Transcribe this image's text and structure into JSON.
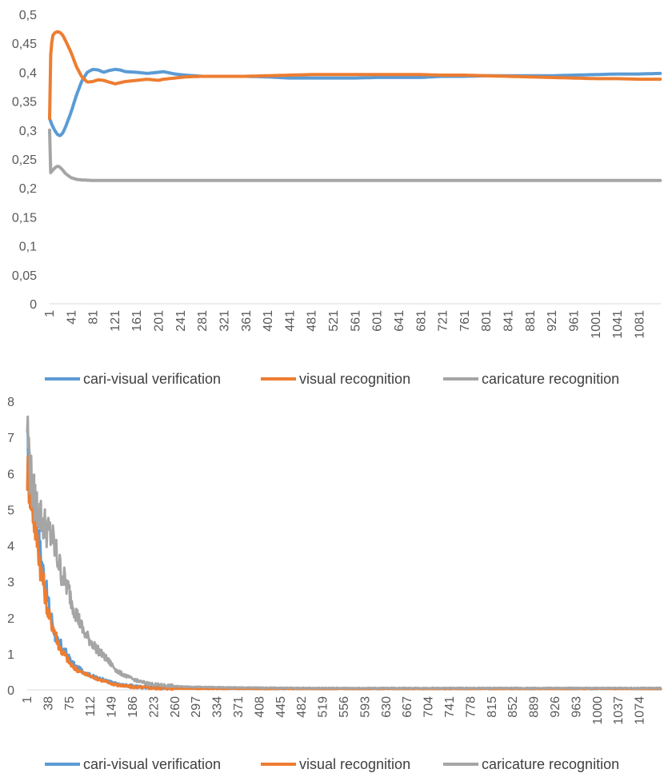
{
  "chart_data": [
    {
      "type": "line",
      "title": "",
      "xlabel": "",
      "ylabel": "",
      "ylim": [
        0,
        0.5
      ],
      "xlim": [
        1,
        1120
      ],
      "y_ticks": [
        "0",
        "0,05",
        "0,1",
        "0,15",
        "0,2",
        "0,25",
        "0,3",
        "0,35",
        "0,4",
        "0,45",
        "0,5"
      ],
      "x_ticks": [
        "1",
        "41",
        "81",
        "121",
        "161",
        "201",
        "241",
        "281",
        "321",
        "361",
        "401",
        "441",
        "481",
        "521",
        "561",
        "601",
        "641",
        "681",
        "721",
        "761",
        "801",
        "841",
        "881",
        "921",
        "961",
        "1001",
        "1041",
        "1081"
      ],
      "grid": false,
      "legend_position": "bottom",
      "series": [
        {
          "name": "cari-visual verification",
          "color": "#5b9bd5",
          "x": [
            1,
            5,
            10,
            15,
            20,
            25,
            30,
            40,
            50,
            60,
            70,
            80,
            90,
            100,
            110,
            121,
            130,
            140,
            160,
            180,
            200,
            210,
            230,
            250,
            280,
            320,
            360,
            400,
            440,
            480,
            520,
            560,
            600,
            640,
            680,
            720,
            760,
            800,
            840,
            880,
            920,
            960,
            1000,
            1040,
            1080,
            1120
          ],
          "y": [
            0.32,
            0.31,
            0.3,
            0.293,
            0.29,
            0.295,
            0.305,
            0.33,
            0.36,
            0.385,
            0.4,
            0.405,
            0.404,
            0.4,
            0.403,
            0.405,
            0.404,
            0.401,
            0.4,
            0.398,
            0.4,
            0.401,
            0.397,
            0.395,
            0.393,
            0.393,
            0.393,
            0.392,
            0.39,
            0.39,
            0.39,
            0.39,
            0.391,
            0.391,
            0.391,
            0.393,
            0.393,
            0.394,
            0.394,
            0.394,
            0.394,
            0.395,
            0.396,
            0.397,
            0.397,
            0.398
          ]
        },
        {
          "name": "visual recognition",
          "color": "#ed7d31",
          "x": [
            1,
            3,
            6,
            10,
            15,
            20,
            25,
            30,
            40,
            50,
            60,
            70,
            80,
            90,
            100,
            110,
            121,
            130,
            140,
            160,
            180,
            200,
            210,
            230,
            250,
            280,
            320,
            360,
            400,
            440,
            480,
            520,
            560,
            600,
            640,
            680,
            720,
            760,
            800,
            840,
            880,
            920,
            960,
            1000,
            1040,
            1080,
            1120
          ],
          "y": [
            0.32,
            0.43,
            0.462,
            0.468,
            0.47,
            0.469,
            0.464,
            0.455,
            0.435,
            0.41,
            0.392,
            0.383,
            0.384,
            0.387,
            0.386,
            0.383,
            0.38,
            0.382,
            0.384,
            0.386,
            0.388,
            0.386,
            0.388,
            0.39,
            0.392,
            0.393,
            0.393,
            0.393,
            0.394,
            0.395,
            0.396,
            0.396,
            0.396,
            0.396,
            0.396,
            0.396,
            0.395,
            0.395,
            0.394,
            0.393,
            0.392,
            0.391,
            0.39,
            0.389,
            0.389,
            0.388,
            0.388
          ]
        },
        {
          "name": "caricature recognition",
          "color": "#a5a5a5",
          "x": [
            1,
            2,
            4,
            8,
            12,
            16,
            20,
            25,
            30,
            40,
            50,
            60,
            80,
            120,
            200,
            400,
            600,
            800,
            1000,
            1120
          ],
          "y": [
            0.3,
            0.225,
            0.228,
            0.232,
            0.236,
            0.238,
            0.236,
            0.231,
            0.225,
            0.218,
            0.215,
            0.214,
            0.213,
            0.213,
            0.213,
            0.213,
            0.213,
            0.213,
            0.213,
            0.213
          ]
        }
      ]
    },
    {
      "type": "line",
      "title": "",
      "xlabel": "",
      "ylabel": "",
      "ylim": [
        0,
        8
      ],
      "xlim": [
        1,
        1111
      ],
      "y_ticks": [
        "0",
        "1",
        "2",
        "3",
        "4",
        "5",
        "6",
        "7",
        "8"
      ],
      "x_ticks": [
        "1",
        "38",
        "75",
        "112",
        "149",
        "186",
        "223",
        "260",
        "297",
        "334",
        "371",
        "408",
        "445",
        "482",
        "519",
        "556",
        "593",
        "630",
        "667",
        "704",
        "741",
        "778",
        "815",
        "852",
        "889",
        "926",
        "963",
        "1000",
        "1037",
        "1074"
      ],
      "grid": false,
      "legend_position": "bottom",
      "series": [
        {
          "name": "cari-visual verification",
          "color": "#5b9bd5",
          "x": [
            1,
            5,
            10,
            15,
            20,
            25,
            30,
            38,
            45,
            50,
            55,
            60,
            65,
            70,
            75,
            80,
            85,
            90,
            100,
            112,
            125,
            140,
            160,
            186,
            223,
            260,
            300,
            400,
            600,
            800,
            1000,
            1111
          ],
          "y": [
            6.6,
            6.0,
            5.4,
            4.8,
            4.3,
            3.7,
            3.2,
            2.4,
            1.9,
            1.5,
            1.3,
            1.25,
            1.1,
            1.0,
            0.85,
            0.75,
            0.65,
            0.6,
            0.5,
            0.4,
            0.33,
            0.25,
            0.15,
            0.1,
            0.06,
            0.05,
            0.04,
            0.03,
            0.03,
            0.03,
            0.03,
            0.03
          ]
        },
        {
          "name": "visual recognition",
          "color": "#ed7d31",
          "x": [
            1,
            5,
            10,
            15,
            20,
            25,
            30,
            38,
            45,
            50,
            55,
            60,
            65,
            70,
            75,
            80,
            85,
            90,
            100,
            112,
            125,
            140,
            160,
            186,
            223,
            260,
            300,
            400,
            600,
            800,
            1000,
            1111
          ],
          "y": [
            6.1,
            5.7,
            5.1,
            4.5,
            4.0,
            3.3,
            2.9,
            2.1,
            1.8,
            1.6,
            1.3,
            1.1,
            1.0,
            0.9,
            0.75,
            0.65,
            0.6,
            0.55,
            0.45,
            0.38,
            0.3,
            0.22,
            0.13,
            0.08,
            0.05,
            0.04,
            0.03,
            0.03,
            0.03,
            0.03,
            0.03,
            0.03
          ]
        },
        {
          "name": "caricature recognition",
          "color": "#a5a5a5",
          "x": [
            1,
            3,
            6,
            10,
            15,
            20,
            25,
            30,
            38,
            45,
            50,
            55,
            60,
            65,
            70,
            75,
            80,
            85,
            90,
            100,
            112,
            125,
            140,
            149,
            160,
            175,
            186,
            200,
            223,
            260,
            300,
            334,
            400,
            500,
            600,
            800,
            1000,
            1111
          ],
          "y": [
            7.4,
            6.9,
            6.1,
            5.6,
            5.2,
            5.0,
            4.8,
            4.6,
            4.4,
            4.2,
            3.9,
            3.6,
            3.3,
            3.1,
            2.9,
            2.7,
            2.4,
            2.2,
            2.0,
            1.6,
            1.35,
            1.1,
            0.85,
            0.7,
            0.5,
            0.38,
            0.3,
            0.22,
            0.15,
            0.1,
            0.08,
            0.07,
            0.06,
            0.05,
            0.05,
            0.05,
            0.05,
            0.05
          ]
        }
      ]
    }
  ]
}
